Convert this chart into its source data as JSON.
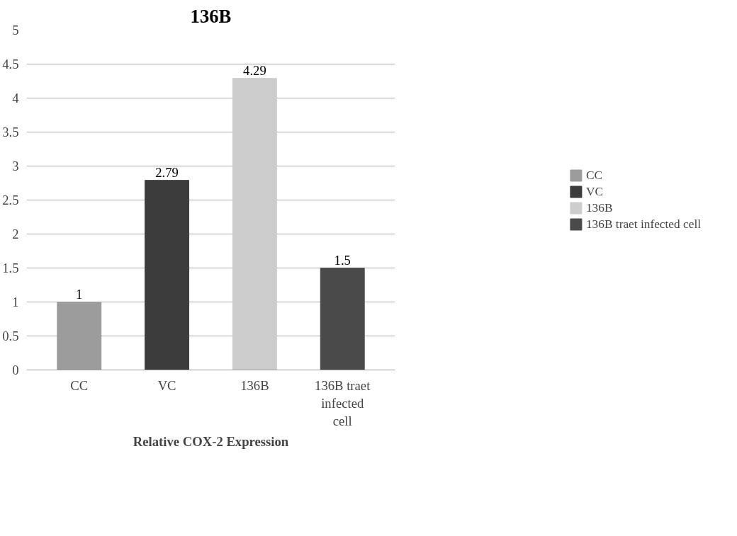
{
  "chart_data": {
    "type": "bar",
    "title": "136B",
    "xlabel": "Relative COX-2 Expression",
    "categories": [
      "CC",
      "VC",
      "136B",
      "136B traet infected cell"
    ],
    "series": [
      {
        "name": "CC",
        "color": "#9c9c9c",
        "values": [
          1,
          null,
          null,
          null
        ]
      },
      {
        "name": "VC",
        "color": "#3c3c3c",
        "values": [
          null,
          2.79,
          null,
          null
        ]
      },
      {
        "name": "136B",
        "color": "#cdcdcd",
        "values": [
          null,
          null,
          4.29,
          null
        ]
      },
      {
        "name": "136B traet infected cell",
        "color": "#4a4a4a",
        "values": [
          null,
          null,
          null,
          1.5
        ]
      }
    ],
    "ylim": [
      0,
      5
    ],
    "yticks": [
      0,
      0.5,
      1,
      1.5,
      2,
      2.5,
      3,
      3.5,
      4,
      4.5,
      5
    ],
    "grid": "y",
    "legend": "right",
    "data_labels": true
  }
}
